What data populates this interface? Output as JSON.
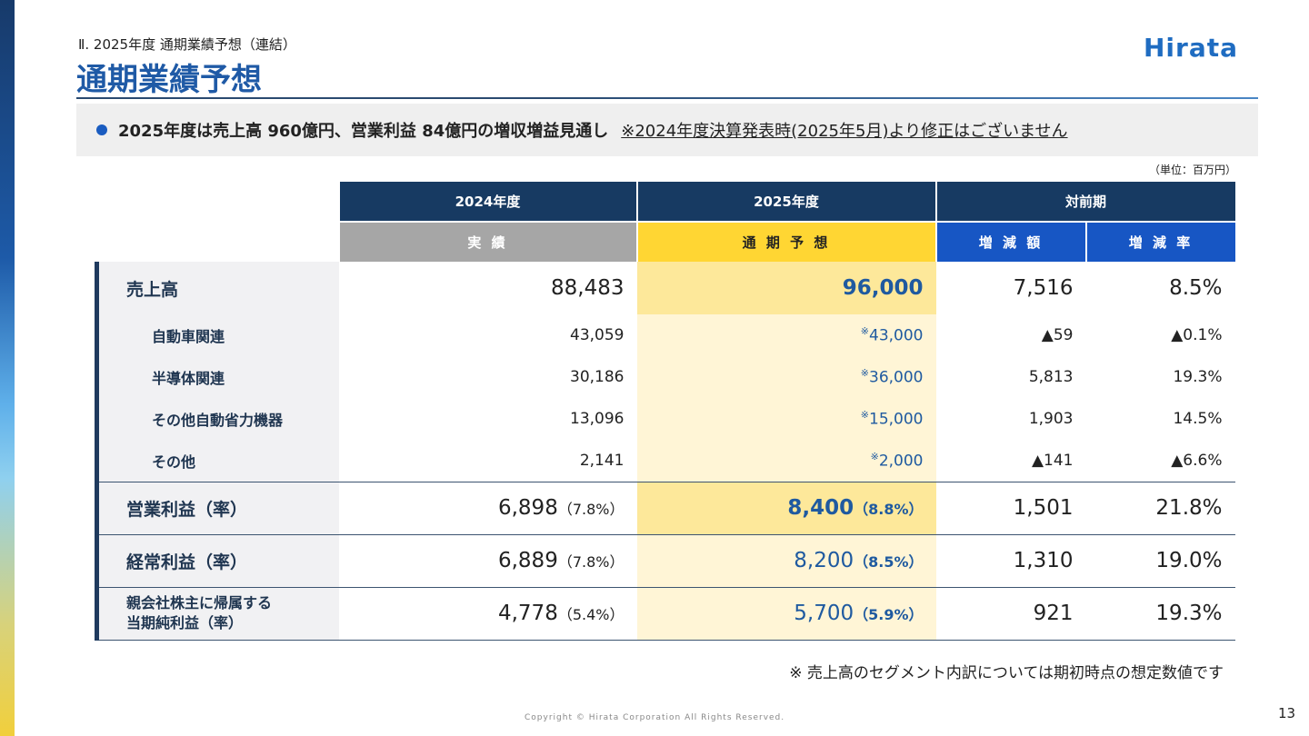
{
  "header": {
    "subtitle": "Ⅱ. 2025年度 通期業績予想（連結）",
    "title": "通期業績予想",
    "logo": "Hirata"
  },
  "banner": {
    "text": "2025年度は売上高 960億円、営業利益 84億円の増収増益見通し",
    "note": "※2024年度決算発表時(2025年5月)より修正はございません"
  },
  "unit": "（単位：百万円）",
  "table": {
    "headers": {
      "fy2024": "2024年度",
      "fy2025": "2025年度",
      "yoy": "対前期",
      "actual": "実 績",
      "forecast": "通 期 予 想",
      "change": "増 減 額",
      "rate": "増 減 率"
    },
    "rows": [
      {
        "label": "売上高",
        "a": "88,483",
        "f": "96,000",
        "c": "7,516",
        "r": "8.5%"
      },
      {
        "label": "自動車関連",
        "a": "43,059",
        "fmark": "※",
        "f": "43,000",
        "c": "▲59",
        "r": "▲0.1%"
      },
      {
        "label": "半導体関連",
        "a": "30,186",
        "fmark": "※",
        "f": "36,000",
        "c": "5,813",
        "r": "19.3%"
      },
      {
        "label": "その他自動省力機器",
        "a": "13,096",
        "fmark": "※",
        "f": "15,000",
        "c": "1,903",
        "r": "14.5%"
      },
      {
        "label": "その他",
        "a": "2,141",
        "fmark": "※",
        "f": "2,000",
        "c": "▲141",
        "r": "▲6.6%"
      },
      {
        "label": "営業利益（率）",
        "a": "6,898",
        "ap": "（7.8%）",
        "f": "8,400",
        "fp": "（8.8%）",
        "c": "1,501",
        "r": "21.8%"
      },
      {
        "label": "経常利益（率）",
        "a": "6,889",
        "ap": "（7.8%）",
        "f": "8,200",
        "fp": "（8.5%）",
        "c": "1,310",
        "r": "19.0%"
      },
      {
        "label1": "親会社株主に帰属する",
        "label2": "当期純利益（率）",
        "a": "4,778",
        "ap": "（5.4%）",
        "f": "5,700",
        "fp": "（5.9%）",
        "c": "921",
        "r": "19.3%"
      }
    ]
  },
  "footnote": "※ 売上高のセグメント内訳については期初時点の想定数値です",
  "copyright": "Copyright © Hirata Corporation All Rights Reserved.",
  "page_number": "13",
  "colors": {
    "navy": "#173a62",
    "accent": "#1f5aa6",
    "actual_header": "#a6a6a6",
    "forecast_header": "#ffd633",
    "yoy_header": "#1756c4"
  }
}
